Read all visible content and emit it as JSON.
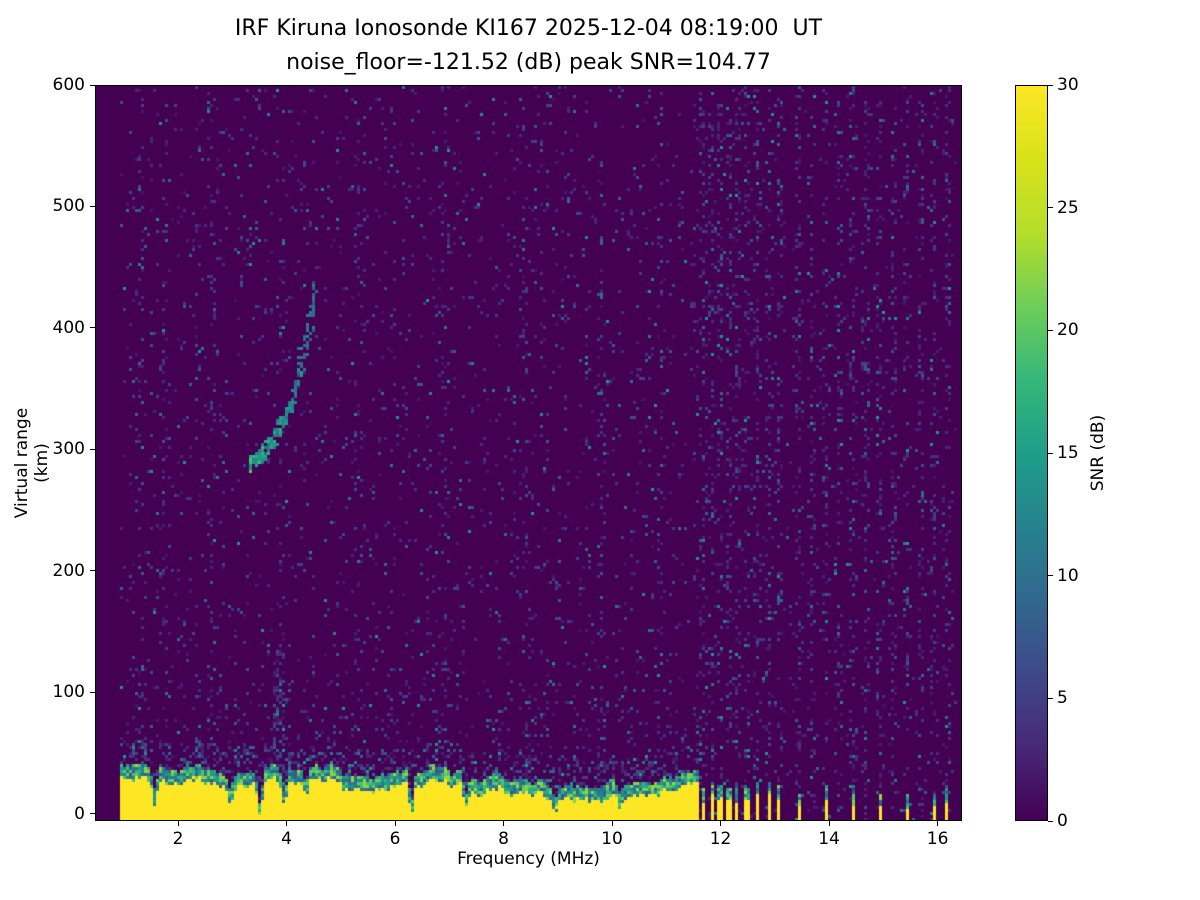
{
  "chart_data": {
    "type": "heatmap",
    "title": "IRF Kiruna Ionosonde KI167 2025-12-04 08:19:00  UT",
    "subtitle": "noise_floor=-121.52 (dB) peak SNR=104.77",
    "xlabel": "Frequency (MHz)",
    "ylabel": "Virtual range (km)",
    "xlim": [
      0.47,
      16.45
    ],
    "ylim": [
      -6,
      600
    ],
    "xticks": [
      2,
      4,
      6,
      8,
      10,
      12,
      14,
      16
    ],
    "yticks": [
      0,
      100,
      200,
      300,
      400,
      500,
      600
    ],
    "grid": false,
    "colorbar": {
      "label": "SNR (dB)",
      "min": 0,
      "max": 30,
      "ticks": [
        0,
        5,
        10,
        15,
        20,
        25,
        30
      ]
    },
    "colormap": "viridis",
    "colormap_stops": [
      [
        0,
        "#440154"
      ],
      [
        0.1,
        "#482878"
      ],
      [
        0.2,
        "#3e4989"
      ],
      [
        0.3,
        "#31688e"
      ],
      [
        0.4,
        "#26828e"
      ],
      [
        0.5,
        "#1f9e89"
      ],
      [
        0.6,
        "#35b779"
      ],
      [
        0.7,
        "#6ece58"
      ],
      [
        0.8,
        "#b5de2b"
      ],
      [
        0.9,
        "#d8e219"
      ],
      [
        1,
        "#fde725"
      ]
    ],
    "features": {
      "noise_floor_db": -121.52,
      "peak_snr_db": 104.77,
      "data_start_mhz": 0.93,
      "data_end_mhz": 16.38,
      "continuous_band_end_mhz": 11.6,
      "ground_clutter": {
        "yellow_top_km_min": 20,
        "yellow_top_km_max": 40,
        "transition_thickness_km": 12,
        "bottom_km": -6
      },
      "clutter_notches": [
        [
          1.55,
          0.5
        ],
        [
          2.95,
          0.55
        ],
        [
          3.5,
          0.15
        ],
        [
          3.95,
          0.35
        ],
        [
          4.35,
          0.55
        ],
        [
          6.3,
          0.12
        ],
        [
          7.3,
          0.35
        ],
        [
          8.95,
          0.45
        ],
        [
          10.15,
          0.6
        ]
      ],
      "sparse_bars_mhz": [
        11.68,
        11.84,
        12.0,
        12.16,
        12.32,
        12.5,
        12.68,
        12.9,
        13.1,
        13.45,
        13.95,
        14.45,
        14.95,
        15.45,
        15.95,
        16.2
      ],
      "noise_stripes_mhz": [
        1.3,
        1.75,
        2.6,
        3.9,
        5.3,
        6.9,
        8.4,
        9.8,
        10.9,
        11.68,
        11.84,
        12.0,
        12.16,
        12.32,
        12.5,
        12.68,
        12.9,
        13.1,
        13.45,
        13.7,
        13.95,
        14.2,
        14.45,
        14.7,
        14.95,
        15.2,
        15.45,
        15.7,
        15.95,
        16.2
      ],
      "echo_trace_mhz_km": [
        [
          3.32,
          288
        ],
        [
          3.45,
          293
        ],
        [
          3.58,
          299
        ],
        [
          3.72,
          307
        ],
        [
          3.86,
          317
        ],
        [
          3.98,
          328
        ],
        [
          4.08,
          340
        ],
        [
          4.18,
          354
        ],
        [
          4.27,
          370
        ],
        [
          4.35,
          387
        ],
        [
          4.42,
          404
        ],
        [
          4.47,
          420
        ],
        [
          4.51,
          434
        ]
      ],
      "smudge_region": {
        "f0": 3.76,
        "f1": 3.98,
        "r0": 55,
        "r1": 135
      }
    }
  }
}
